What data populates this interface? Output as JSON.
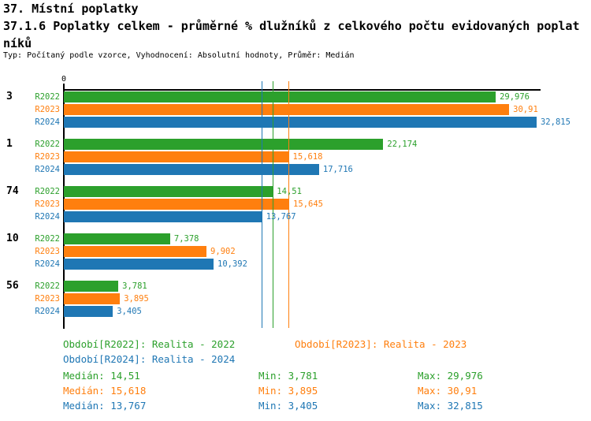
{
  "header": {
    "section_title": "37. Místní poplatky",
    "title_line1": "37.1.6 Poplatky celkem - průměrné % dlužníků z celkového počtu evidovaných poplat",
    "title_line2": "níků",
    "meta": "Typ: Počítaný podle vzorce, Vyhodnocení: Absolutní hodnoty, Průměr: Medián"
  },
  "chart_data": {
    "type": "bar",
    "orientation": "horizontal",
    "grid": false,
    "x_axis": {
      "zero_label": "0",
      "xmax": 33.1
    },
    "series": [
      {
        "label": "R2022",
        "color": "#2ca02c",
        "legend": "Období[R2022]: Realita - 2022",
        "median_line": 14.51,
        "stats": {
          "median": "Medián: 14,51",
          "min": "Min: 3,781",
          "max": "Max: 29,976"
        }
      },
      {
        "label": "R2023",
        "color": "#ff7f0e",
        "legend": "Období[R2023]: Realita - 2023",
        "median_line": 15.618,
        "stats": {
          "median": "Medián: 15,618",
          "min": "Min: 3,895",
          "max": "Max: 30,91"
        }
      },
      {
        "label": "R2024",
        "color": "#1f77b4",
        "legend": "Období[R2024]: Realita - 2024",
        "median_line": 13.767,
        "stats": {
          "median": "Medián: 13,767",
          "min": "Min: 3,405",
          "max": "Max: 32,815"
        }
      }
    ],
    "groups": [
      {
        "label": "3",
        "values": [
          29.976,
          30.91,
          32.815
        ],
        "value_labels": [
          "29,976",
          "30,91",
          "32,815"
        ]
      },
      {
        "label": "1",
        "values": [
          22.174,
          15.618,
          17.716
        ],
        "value_labels": [
          "22,174",
          "15,618",
          "17,716"
        ]
      },
      {
        "label": "74",
        "values": [
          14.51,
          15.645,
          13.767
        ],
        "value_labels": [
          "14,51",
          "15,645",
          "13,767"
        ]
      },
      {
        "label": "10",
        "values": [
          7.378,
          9.902,
          10.392
        ],
        "value_labels": [
          "7,378",
          "9,902",
          "10,392"
        ]
      },
      {
        "label": "56",
        "values": [
          3.781,
          3.895,
          3.405
        ],
        "value_labels": [
          "3,781",
          "3,895",
          "3,405"
        ]
      }
    ]
  }
}
